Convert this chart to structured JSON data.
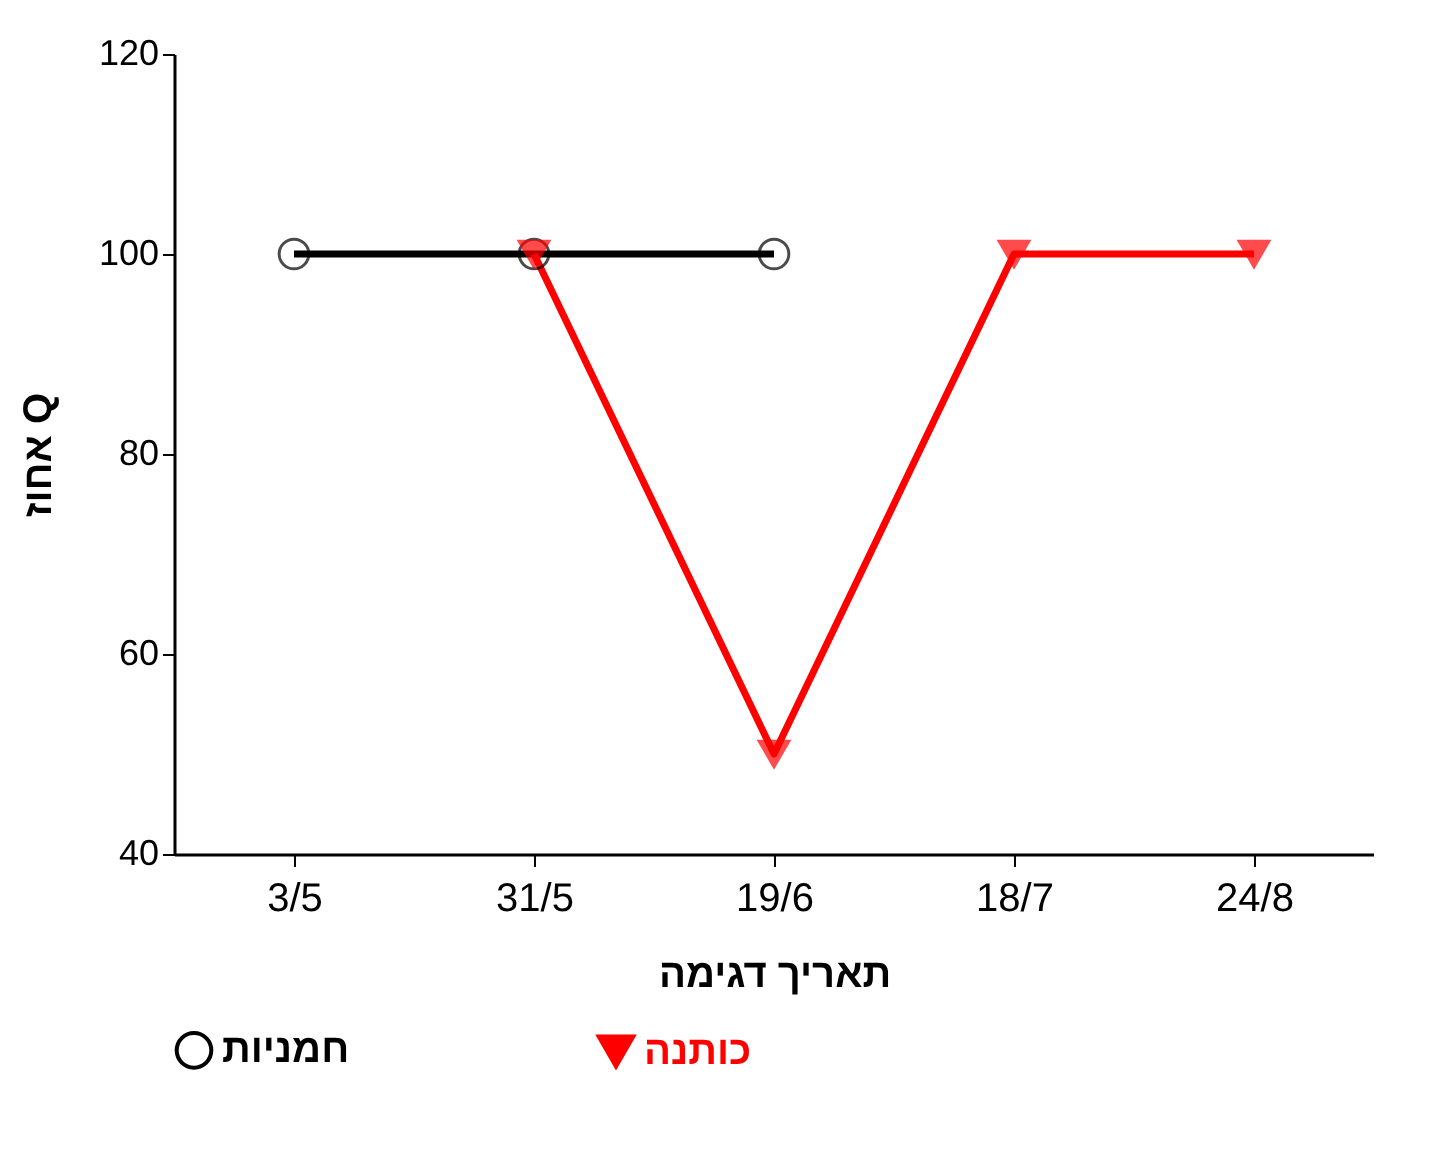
{
  "chart_data": {
    "type": "line",
    "xlabel": "תאריך דגימה",
    "ylabel": "אחוז Q",
    "categories": [
      "3/5",
      "31/5",
      "19/6",
      "18/7",
      "24/8"
    ],
    "series": [
      {
        "name": "חמניות",
        "color": "#000000",
        "marker": "circle",
        "values": [
          100,
          100,
          100,
          null,
          null
        ]
      },
      {
        "name": "כותנה",
        "color": "#ff0000",
        "marker": "triangle",
        "values": [
          null,
          100,
          50,
          100,
          100
        ]
      }
    ],
    "ylim": [
      40,
      120
    ],
    "yticks": [
      40,
      60,
      80,
      100,
      120
    ],
    "grid": false,
    "legend": "bottom",
    "line_style": "solid"
  }
}
